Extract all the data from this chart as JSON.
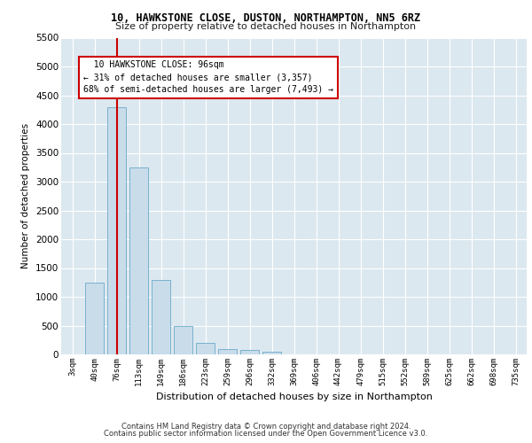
{
  "title1": "10, HAWKSTONE CLOSE, DUSTON, NORTHAMPTON, NN5 6RZ",
  "title2": "Size of property relative to detached houses in Northampton",
  "xlabel": "Distribution of detached houses by size in Northampton",
  "ylabel": "Number of detached properties",
  "bar_labels": [
    "3sqm",
    "40sqm",
    "76sqm",
    "113sqm",
    "149sqm",
    "186sqm",
    "223sqm",
    "259sqm",
    "296sqm",
    "332sqm",
    "369sqm",
    "406sqm",
    "442sqm",
    "479sqm",
    "515sqm",
    "552sqm",
    "589sqm",
    "625sqm",
    "662sqm",
    "698sqm",
    "735sqm"
  ],
  "bar_values": [
    0,
    1250,
    4300,
    3250,
    1300,
    500,
    200,
    100,
    70,
    50,
    0,
    0,
    0,
    0,
    0,
    0,
    0,
    0,
    0,
    0,
    0
  ],
  "bar_color": "#c9dcea",
  "bar_edge_color": "#6aaac8",
  "ylim": [
    0,
    5500
  ],
  "yticks": [
    0,
    500,
    1000,
    1500,
    2000,
    2500,
    3000,
    3500,
    4000,
    4500,
    5000,
    5500
  ],
  "annotation_text": "  10 HAWKSTONE CLOSE: 96sqm  \n← 31% of detached houses are smaller (3,357)\n68% of semi-detached houses are larger (7,493) →",
  "annotation_box_color": "#ffffff",
  "annotation_box_edge": "#cc0000",
  "vline_color": "#cc0000",
  "vline_x_index": 2,
  "footer1": "Contains HM Land Registry data © Crown copyright and database right 2024.",
  "footer2": "Contains public sector information licensed under the Open Government Licence v3.0.",
  "plot_bg_color": "#dce8f0",
  "grid_color": "#ffffff"
}
